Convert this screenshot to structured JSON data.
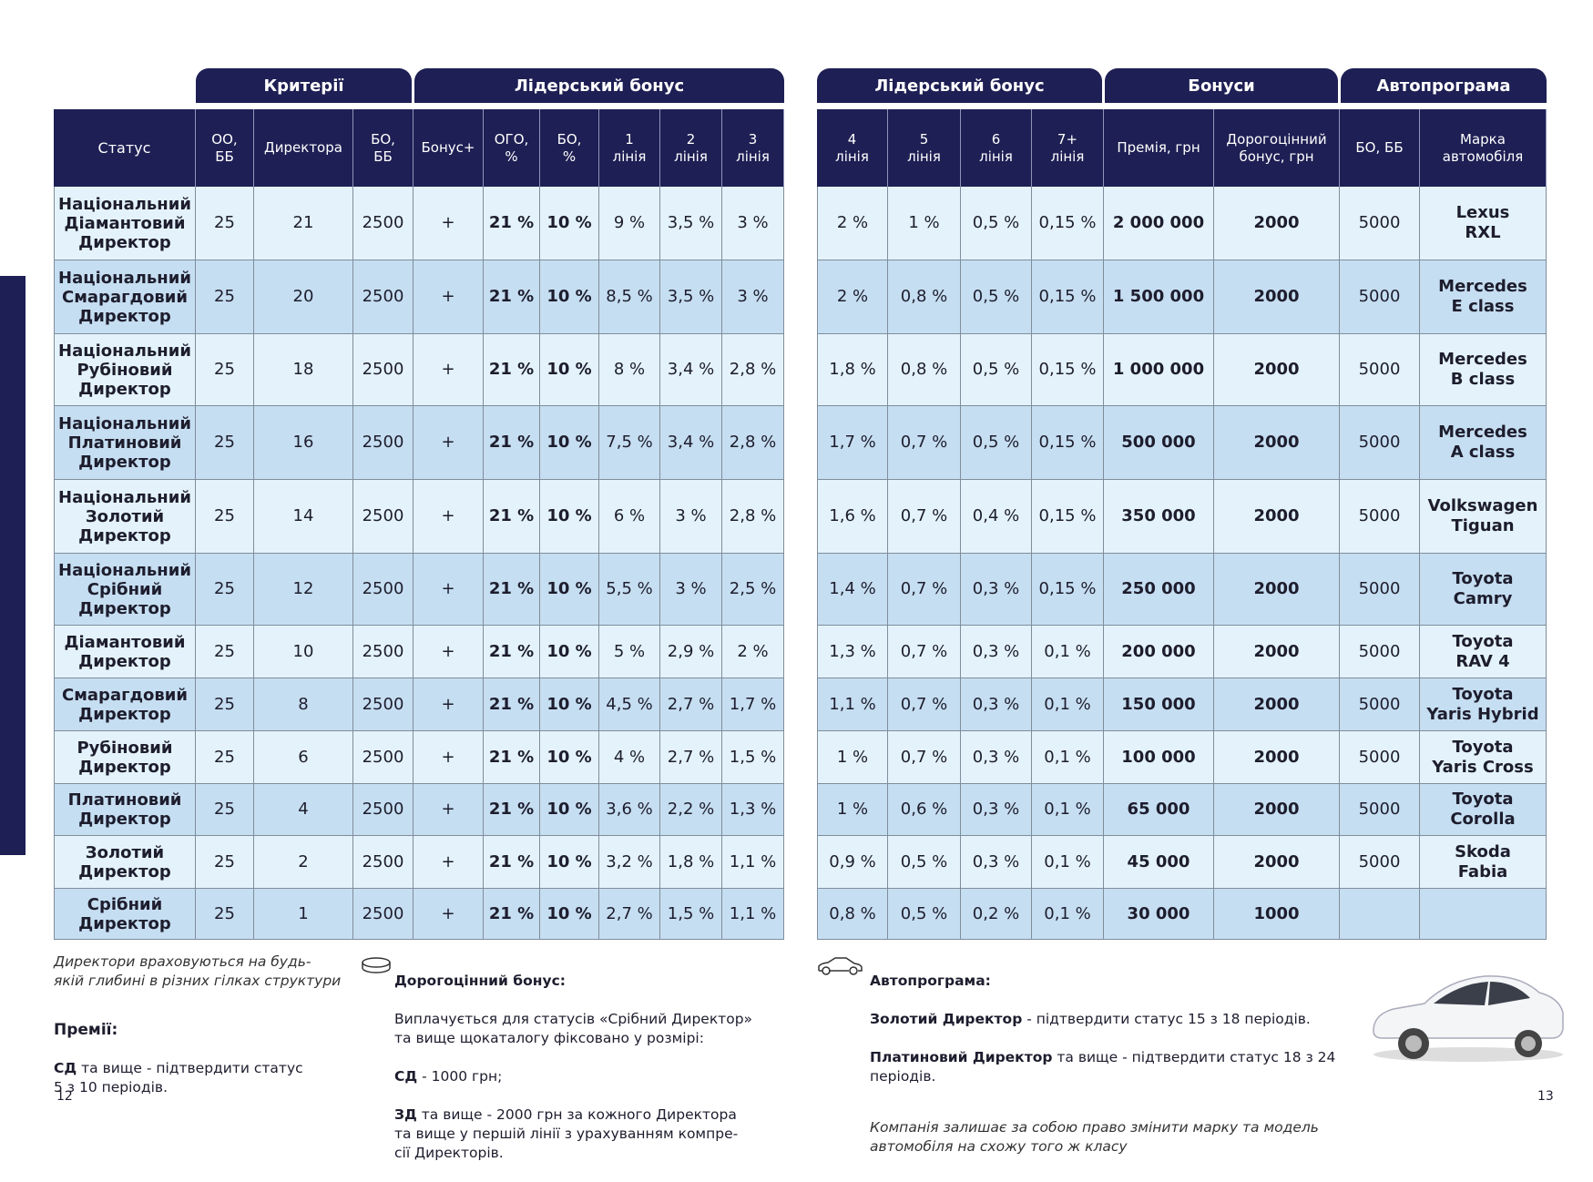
{
  "groups_left": [
    "Критерії",
    "Лідерський бонус"
  ],
  "groups_right": [
    "Лідерський бонус",
    "Бонуси",
    "Автопрограма"
  ],
  "columns_left": [
    "Статус",
    "ОО,\nББ",
    "Директора",
    "БО,\nББ",
    "Бонус+",
    "ОГО,\n%",
    "БО,\n%",
    "1\nлінія",
    "2\nлінія",
    "3\nлінія"
  ],
  "columns_right": [
    "4\nлінія",
    "5\nлінія",
    "6\nлінія",
    "7+\nлінія",
    "Премія, грн",
    "Дорогоцінний\nбонус, грн",
    "БО, ББ",
    "Марка\nавтомобіля"
  ],
  "rows": [
    {
      "left": [
        "Національний\nДіамантовий\nДиректор",
        "25",
        "21",
        "2500",
        "+",
        "21 %",
        "10 %",
        "9 %",
        "3,5 %",
        "3 %"
      ],
      "right": [
        "2 %",
        "1 %",
        "0,5 %",
        "0,15 %",
        "2 000 000",
        "2000",
        "5000",
        "Lexus\nRXL"
      ]
    },
    {
      "left": [
        "Національний\nСмарагдовий\nДиректор",
        "25",
        "20",
        "2500",
        "+",
        "21 %",
        "10 %",
        "8,5 %",
        "3,5 %",
        "3 %"
      ],
      "right": [
        "2 %",
        "0,8 %",
        "0,5 %",
        "0,15 %",
        "1 500 000",
        "2000",
        "5000",
        "Mercedes\nE class"
      ]
    },
    {
      "left": [
        "Національний\nРубіновий\nДиректор",
        "25",
        "18",
        "2500",
        "+",
        "21 %",
        "10 %",
        "8 %",
        "3,4 %",
        "2,8 %"
      ],
      "right": [
        "1,8 %",
        "0,8 %",
        "0,5 %",
        "0,15 %",
        "1 000 000",
        "2000",
        "5000",
        "Mercedes\nB class"
      ]
    },
    {
      "left": [
        "Національний\nПлатиновий\nДиректор",
        "25",
        "16",
        "2500",
        "+",
        "21 %",
        "10 %",
        "7,5 %",
        "3,4 %",
        "2,8 %"
      ],
      "right": [
        "1,7 %",
        "0,7 %",
        "0,5 %",
        "0,15 %",
        "500 000",
        "2000",
        "5000",
        "Mercedes\nA class"
      ]
    },
    {
      "left": [
        "Національний\nЗолотий\nДиректор",
        "25",
        "14",
        "2500",
        "+",
        "21 %",
        "10 %",
        "6 %",
        "3 %",
        "2,8 %"
      ],
      "right": [
        "1,6 %",
        "0,7 %",
        "0,4 %",
        "0,15 %",
        "350 000",
        "2000",
        "5000",
        "Volkswagen\nTiguan"
      ]
    },
    {
      "left": [
        "Національний\nСрібний\nДиректор",
        "25",
        "12",
        "2500",
        "+",
        "21 %",
        "10 %",
        "5,5 %",
        "3 %",
        "2,5 %"
      ],
      "right": [
        "1,4 %",
        "0,7 %",
        "0,3 %",
        "0,15 %",
        "250 000",
        "2000",
        "5000",
        "Toyota\nCamry"
      ]
    },
    {
      "left": [
        "Діамантовий\nДиректор",
        "25",
        "10",
        "2500",
        "+",
        "21 %",
        "10 %",
        "5 %",
        "2,9 %",
        "2 %"
      ],
      "right": [
        "1,3 %",
        "0,7 %",
        "0,3 %",
        "0,1 %",
        "200 000",
        "2000",
        "5000",
        "Toyota\nRAV 4"
      ]
    },
    {
      "left": [
        "Смарагдовий\nДиректор",
        "25",
        "8",
        "2500",
        "+",
        "21 %",
        "10 %",
        "4,5 %",
        "2,7 %",
        "1,7 %"
      ],
      "right": [
        "1,1 %",
        "0,7 %",
        "0,3 %",
        "0,1 %",
        "150 000",
        "2000",
        "5000",
        "Toyota\nYaris Hybrid"
      ]
    },
    {
      "left": [
        "Рубіновий\nДиректор",
        "25",
        "6",
        "2500",
        "+",
        "21 %",
        "10 %",
        "4 %",
        "2,7 %",
        "1,5 %"
      ],
      "right": [
        "1 %",
        "0,7 %",
        "0,3 %",
        "0,1 %",
        "100 000",
        "2000",
        "5000",
        "Toyota\nYaris Cross"
      ]
    },
    {
      "left": [
        "Платиновий\nДиректор",
        "25",
        "4",
        "2500",
        "+",
        "21 %",
        "10 %",
        "3,6 %",
        "2,2 %",
        "1,3 %"
      ],
      "right": [
        "1 %",
        "0,6 %",
        "0,3 %",
        "0,1 %",
        "65 000",
        "2000",
        "5000",
        "Toyota\nCorolla"
      ]
    },
    {
      "left": [
        "Золотий\nДиректор",
        "25",
        "2",
        "2500",
        "+",
        "21 %",
        "10 %",
        "3,2 %",
        "1,8 %",
        "1,1 %"
      ],
      "right": [
        "0,9 %",
        "0,5 %",
        "0,3 %",
        "0,1 %",
        "45 000",
        "2000",
        "5000",
        "Skoda\nFabia"
      ]
    },
    {
      "left": [
        "Срібний\nДиректор",
        "25",
        "1",
        "2500",
        "+",
        "21 %",
        "10 %",
        "2,7 %",
        "1,5 %",
        "1,1 %"
      ],
      "right": [
        "0,8 %",
        "0,5 %",
        "0,2 %",
        "0,1 %",
        "30 000",
        "1000",
        null,
        null
      ]
    }
  ],
  "notes": {
    "directors": "Директори враховуються на будь-\nякій глибині в різних гілках структури",
    "premii_title": "Премії:",
    "premii_bold": "СД",
    "premii_text": " та вище - підтвердити статус\n5 з 10 періодів.",
    "precious_title": "Дорогоцінний бонус:",
    "precious_text": "Виплачується для статусів «Срібний Директор»\nта вище щокаталогу фіксовано у розмірі:",
    "precious_sd_bold": "СД",
    "precious_sd_text": " - 1000 грн;",
    "precious_zd_bold": "ЗД",
    "precious_zd_text": " та вище - 2000 грн за кожного Директора\nта вище у першій лінії з урахуванням компре-\nсії Директорів.",
    "auto_title": "Автопрограма:",
    "auto_l1_bold": "Золотий Директор",
    "auto_l1_text": " - підтвердити статус 15 з 18 періодів.",
    "auto_l2_bold": "Платиновий Директор",
    "auto_l2_text": " та вище - підтвердити статус 18 з 24 періодів.",
    "auto_disclaimer": "Компанія залишає за собою право змінити марку та модель\nавтомобіля на схожу того ж класу"
  },
  "page_left": "12",
  "page_right": "13"
}
